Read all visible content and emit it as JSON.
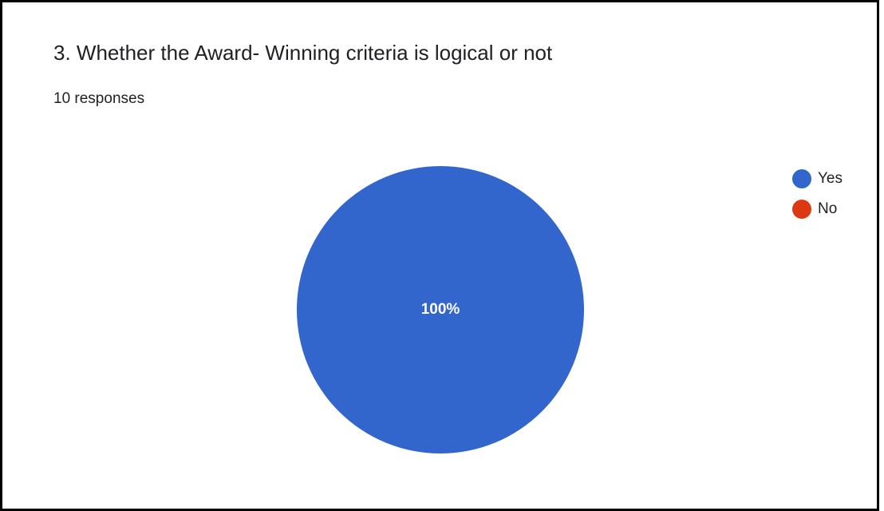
{
  "header": {
    "title": "3. Whether the Award- Winning criteria is logical or not",
    "responses": "10 responses"
  },
  "chart_data": {
    "type": "pie",
    "categories": [
      "Yes",
      "No"
    ],
    "values": [
      100,
      0
    ],
    "labels": [
      "100%",
      ""
    ],
    "colors": [
      "#3366cc",
      "#dc3912"
    ],
    "legend_position": "right",
    "title": "3. Whether the Award- Winning criteria is logical or not"
  }
}
